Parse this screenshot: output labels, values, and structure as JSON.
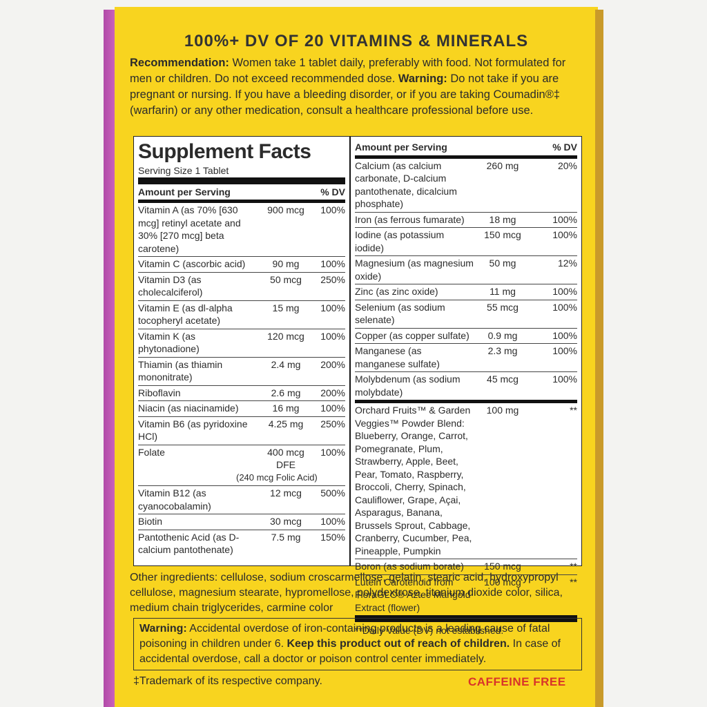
{
  "headline": "100%+ DV OF 20 VITAMINS & MINERALS",
  "directions": {
    "recommendation": {
      "label": "Recommendation:",
      "text": "Women take 1 tablet daily, preferably with food. Not formulated for men or children. Do not exceed recommended dose."
    },
    "warning": {
      "label": "Warning:",
      "text": "Do not take if you are pregnant or nursing. If you have a bleeding disorder, or if you are taking Coumadin®‡ (warfarin) or any other medication, consult a healthcare professional before use."
    }
  },
  "supplement_facts": {
    "title": "Supplement Facts",
    "serving_size": "Serving Size 1 Tablet",
    "left": {
      "header": {
        "amount": "Amount per Serving",
        "dv": "% DV"
      },
      "rows": [
        {
          "nutrient": "Vitamin A (as 70% [630 mcg] retinyl acetate and 30% [270 mcg] beta carotene)",
          "amount": "900 mcg",
          "dv": "100%"
        },
        {
          "nutrient": "Vitamin C (ascorbic acid)",
          "amount": "90 mg",
          "dv": "100%"
        },
        {
          "nutrient": "Vitamin D3 (as cholecalciferol)",
          "amount": "50 mcg",
          "dv": "250%"
        },
        {
          "nutrient": "Vitamin E (as dl-alpha tocopheryl acetate)",
          "amount": "15 mg",
          "dv": "100%"
        },
        {
          "nutrient": "Vitamin K (as phytonadione)",
          "amount": "120 mcg",
          "dv": "100%"
        },
        {
          "nutrient": "Thiamin (as thiamin mononitrate)",
          "amount": "2.4 mg",
          "dv": "200%"
        },
        {
          "nutrient": "Riboflavin",
          "amount": "2.6 mg",
          "dv": "200%"
        },
        {
          "nutrient": "Niacin (as niacinamide)",
          "amount": "16 mg",
          "dv": "100%"
        },
        {
          "nutrient": "Vitamin B6 (as pyridoxine HCl)",
          "amount": "4.25 mg",
          "dv": "250%"
        },
        {
          "nutrient": "Folate",
          "amount": "400 mcg DFE",
          "amount_note": "(240 mcg Folic Acid)",
          "dv": "100%"
        },
        {
          "nutrient": "Vitamin B12 (as cyanocobalamin)",
          "amount": "12 mcg",
          "dv": "500%"
        },
        {
          "nutrient": "Biotin",
          "amount": "30 mcg",
          "dv": "100%"
        },
        {
          "nutrient": "Pantothenic Acid (as D-calcium pantothenate)",
          "amount": "7.5 mg",
          "dv": "150%"
        }
      ]
    },
    "right": {
      "header": {
        "amount": "Amount per Serving",
        "dv": "% DV"
      },
      "rows": [
        {
          "nutrient": "Calcium (as calcium carbonate, D-calcium pantothenate, dicalcium phosphate)",
          "amount": "260 mg",
          "dv": "20%"
        },
        {
          "nutrient": "Iron (as ferrous fumarate)",
          "amount": "18 mg",
          "dv": "100%"
        },
        {
          "nutrient": "Iodine (as potassium iodide)",
          "amount": "150 mcg",
          "dv": "100%"
        },
        {
          "nutrient": "Magnesium (as magnesium oxide)",
          "amount": "50 mg",
          "dv": "12%"
        },
        {
          "nutrient": "Zinc (as zinc oxide)",
          "amount": "11 mg",
          "dv": "100%"
        },
        {
          "nutrient": "Selenium (as sodium selenate)",
          "amount": "55 mcg",
          "dv": "100%"
        },
        {
          "nutrient": "Copper (as copper sulfate)",
          "amount": "0.9 mg",
          "dv": "100%"
        },
        {
          "nutrient": "Manganese (as manganese sulfate)",
          "amount": "2.3 mg",
          "dv": "100%"
        },
        {
          "nutrient": "Molybdenum (as sodium molybdate)",
          "amount": "45 mcg",
          "dv": "100%"
        }
      ],
      "blend_rows": [
        {
          "nutrient": "Orchard Fruits™ & Garden Veggies™ Powder Blend: Blueberry, Orange, Carrot, Pomegranate, Plum, Strawberry, Apple, Beet, Pear, Tomato, Raspberry, Broccoli, Cherry, Spinach, Cauliflower, Grape, Açai, Asparagus, Banana, Brussels Sprout, Cabbage, Cranberry, Cucumber, Pea, Pineapple, Pumpkin",
          "amount": "100 mg",
          "dv": "**"
        },
        {
          "nutrient": "Boron (as sodium borate)",
          "amount": "150 mcg",
          "dv": "**"
        },
        {
          "nutrient": "Lutein Carotenoid from FloraGLO® Aztec Marigold Extract (flower)",
          "amount": "100 mcg",
          "dv": "**"
        }
      ]
    },
    "footnote": "**Daily Value (DV) not established."
  },
  "other_ingredients": "Other ingredients: cellulose, sodium croscarmellose, gelatin, stearic acid, hydroxypropyl cellulose, magnesium stearate, hypromellose, polydextrose, titanium dioxide color, silica, medium chain triglycerides, carmine color",
  "overdose_warning": {
    "label": "Warning:",
    "text": "Accidental overdose of iron-containing products is a leading cause of fatal poisoning in children under 6.",
    "emphasis": "Keep this product out of reach of children.",
    "text_after": "In case of accidental overdose, call a doctor or poison control center immediately."
  },
  "trademark_note": "‡Trademark of its respective company.",
  "badge": "CAFFEINE FREE"
}
